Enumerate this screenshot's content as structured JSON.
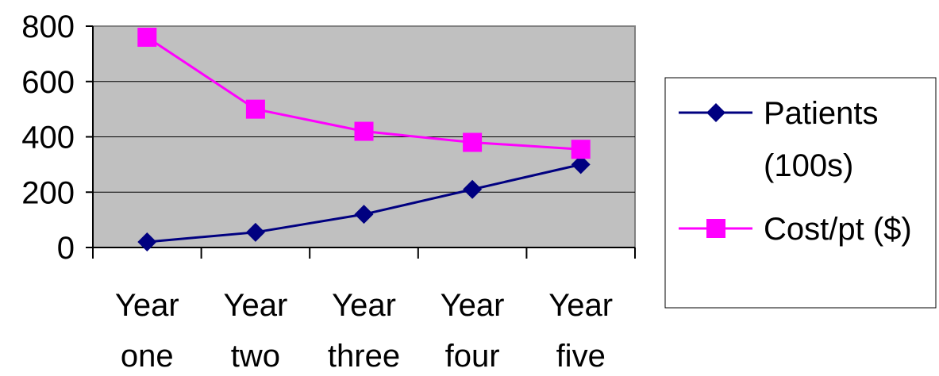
{
  "chart_data": {
    "type": "line",
    "categories": [
      {
        "line1": "Year",
        "line2": "one"
      },
      {
        "line1": "Year",
        "line2": "two"
      },
      {
        "line1": "Year",
        "line2": "three"
      },
      {
        "line1": "Year",
        "line2": "four"
      },
      {
        "line1": "Year",
        "line2": "five"
      }
    ],
    "series": [
      {
        "name": "Patients (100s)",
        "name_lines": [
          "Patients",
          "(100s)"
        ],
        "values": [
          20,
          55,
          120,
          210,
          300
        ],
        "color": "#000080",
        "marker": "diamond"
      },
      {
        "name": "Cost/pt ($)",
        "name_lines": [
          "Cost/pt ($)"
        ],
        "values": [
          760,
          500,
          420,
          380,
          355
        ],
        "color": "#ff00ff",
        "marker": "square"
      }
    ],
    "ylim": [
      0,
      800
    ],
    "yticks": [
      "0",
      "200",
      "400",
      "600",
      "800"
    ],
    "grid": true,
    "plot_background": "#c0c0c0",
    "legend_position": "right"
  }
}
